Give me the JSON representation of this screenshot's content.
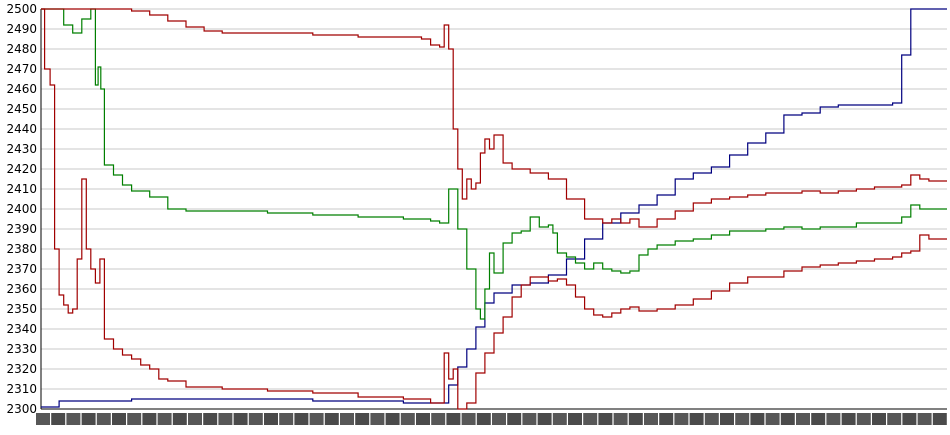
{
  "chart_data": {
    "type": "line",
    "title": "",
    "xlabel": "",
    "ylabel": "",
    "ylim": [
      2300,
      2500
    ],
    "yticks": [
      2300,
      2310,
      2320,
      2330,
      2340,
      2350,
      2360,
      2370,
      2380,
      2390,
      2400,
      2410,
      2420,
      2430,
      2440,
      2450,
      2460,
      2470,
      2480,
      2490,
      2500
    ],
    "xlim": [
      0,
      100
    ],
    "grid": "horizontal",
    "legend": "none",
    "series": [
      {
        "color": "#00007f",
        "x": [
          0,
          2,
          10,
          20,
          30,
          40,
          44,
          45,
          46,
          47,
          48,
          49,
          50,
          52,
          54,
          56,
          58,
          60,
          62,
          64,
          66,
          68,
          70,
          72,
          74,
          76,
          78,
          80,
          82,
          84,
          86,
          88,
          90,
          94,
          95,
          96,
          97,
          100
        ],
        "y": [
          2301,
          2304,
          2305,
          2305,
          2304,
          2303,
          2303,
          2312,
          2321,
          2330,
          2341,
          2353,
          2358,
          2362,
          2363,
          2367,
          2375,
          2385,
          2393,
          2398,
          2402,
          2407,
          2415,
          2418,
          2421,
          2427,
          2433,
          2438,
          2447,
          2448,
          2451,
          2452,
          2452,
          2453,
          2477,
          2500,
          2500,
          2500
        ]
      },
      {
        "color": "#007f00",
        "x": [
          0,
          0.5,
          1.5,
          2.5,
          3.5,
          4.5,
          5.5,
          6,
          6.3,
          6.6,
          7,
          8,
          9,
          10,
          12,
          14,
          16,
          20,
          25,
          30,
          35,
          40,
          43,
          44,
          45,
          46,
          47,
          48,
          48.5,
          49,
          49.5,
          50,
          51,
          52,
          53,
          54,
          55,
          56,
          56.5,
          57,
          58,
          59,
          60,
          61,
          62,
          63,
          64,
          65,
          66,
          67,
          68,
          70,
          72,
          74,
          76,
          78,
          80,
          82,
          84,
          86,
          88,
          90,
          92,
          94,
          95,
          96,
          97,
          98,
          100
        ],
        "y": [
          2500,
          2500,
          2500,
          2492,
          2488,
          2495,
          2500,
          2462,
          2471,
          2460,
          2422,
          2417,
          2412,
          2409,
          2406,
          2400,
          2399,
          2399,
          2398,
          2397,
          2396,
          2395,
          2394,
          2393,
          2410,
          2390,
          2370,
          2350,
          2345,
          2360,
          2378,
          2368,
          2383,
          2388,
          2389,
          2396,
          2391,
          2392,
          2388,
          2378,
          2376,
          2373,
          2370,
          2373,
          2370,
          2369,
          2368,
          2369,
          2377,
          2380,
          2382,
          2384,
          2385,
          2387,
          2389,
          2389,
          2390,
          2391,
          2390,
          2391,
          2391,
          2393,
          2393,
          2393,
          2396,
          2402,
          2400,
          2400,
          2400
        ]
      },
      {
        "color": "#a00000",
        "x": [
          0,
          0.4,
          1,
          1.5,
          2,
          2.5,
          3,
          3.5,
          4,
          4.5,
          5,
          5.5,
          6,
          6.5,
          7,
          8,
          9,
          10,
          11,
          12,
          13,
          14,
          16,
          20,
          25,
          30,
          35,
          40,
          43,
          44,
          44.5,
          45,
          45.5,
          46,
          47,
          48,
          49,
          50,
          51,
          52,
          53,
          54,
          55,
          56,
          57,
          58,
          59,
          60,
          61,
          62,
          63,
          64,
          65,
          66,
          67,
          68,
          70,
          72,
          74,
          76,
          78,
          80,
          82,
          84,
          86,
          88,
          90,
          92,
          94,
          95,
          96,
          97,
          98,
          100
        ],
        "y": [
          2500,
          2470,
          2462,
          2380,
          2357,
          2352,
          2348,
          2350,
          2375,
          2415,
          2380,
          2370,
          2363,
          2375,
          2335,
          2330,
          2327,
          2325,
          2322,
          2320,
          2315,
          2314,
          2311,
          2310,
          2309,
          2308,
          2306,
          2305,
          2303,
          2303,
          2328,
          2315,
          2320,
          2300,
          2303,
          2318,
          2328,
          2338,
          2346,
          2356,
          2362,
          2366,
          2366,
          2364,
          2365,
          2362,
          2356,
          2350,
          2347,
          2346,
          2348,
          2350,
          2351,
          2349,
          2349,
          2350,
          2352,
          2355,
          2359,
          2363,
          2366,
          2366,
          2369,
          2371,
          2372,
          2373,
          2374,
          2375,
          2376,
          2378,
          2379,
          2387,
          2385,
          2385
        ]
      },
      {
        "color": "#a00000",
        "x": [
          0,
          4,
          8,
          10,
          12,
          14,
          16,
          18,
          20,
          25,
          30,
          35,
          40,
          42,
          43,
          44,
          44.5,
          45,
          45.5,
          46,
          46.5,
          47,
          47.5,
          48,
          48.5,
          49,
          49.5,
          50,
          51,
          52,
          54,
          56,
          58,
          60,
          62,
          63,
          64,
          65,
          66,
          68,
          70,
          72,
          74,
          76,
          78,
          80,
          82,
          84,
          86,
          88,
          90,
          92,
          94,
          95,
          96,
          97,
          98,
          100
        ],
        "y": [
          2500,
          2500,
          2500,
          2499,
          2497,
          2494,
          2491,
          2489,
          2488,
          2488,
          2487,
          2486,
          2486,
          2485,
          2482,
          2481,
          2492,
          2480,
          2440,
          2420,
          2405,
          2415,
          2410,
          2413,
          2428,
          2435,
          2430,
          2437,
          2423,
          2420,
          2418,
          2415,
          2405,
          2395,
          2393,
          2395,
          2393,
          2395,
          2391,
          2395,
          2399,
          2403,
          2405,
          2406,
          2407,
          2408,
          2408,
          2409,
          2408,
          2409,
          2410,
          2411,
          2411,
          2412,
          2417,
          2415,
          2414,
          2414
        ]
      }
    ]
  }
}
